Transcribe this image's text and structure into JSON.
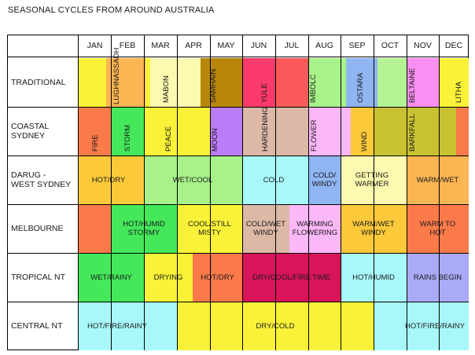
{
  "title": "SEASONAL CYCLES FROM AROUND AUSTRALIA",
  "months": [
    "JAN",
    "FEB",
    "MAR",
    "APR",
    "MAY",
    "JUN",
    "JUL",
    "AUG",
    "SEP",
    "OCT",
    "NOV",
    "DEC"
  ],
  "rows": [
    {
      "label": "TRADITIONAL"
    },
    {
      "label_lines": [
        "COASTAL",
        "SYDNEY"
      ]
    },
    {
      "label_lines": [
        "DARUG -",
        "WEST SYDNEY"
      ]
    },
    {
      "label": "MELBOURNE"
    },
    {
      "label": "TROPICAL NT"
    },
    {
      "label": "CENTRAL NT"
    }
  ],
  "traditional": [
    "LUGHNASSADH",
    "MABON",
    "SAMHAIN",
    "YULE",
    "IMBOLC",
    "OSTARA",
    "BELTAINE",
    "LITHA"
  ],
  "coastal_sydney": [
    "FIRE",
    "STORM",
    "PEACE",
    "MOON",
    "HARDENING",
    "FLOWER",
    "WIND",
    "BARKFALL"
  ],
  "darug": {
    "s1": "HOT/DRY",
    "s2": "WET/COOL",
    "s3": "COLD",
    "s4": [
      "COLD/",
      "WINDY"
    ],
    "s5": [
      "GETTING",
      "WARMER"
    ],
    "s6": "WARM/WET"
  },
  "melbourne": {
    "s2": [
      "HOT/HUMID",
      "STORMY"
    ],
    "s3": [
      "COOL/STILL",
      "MISTY"
    ],
    "s4": [
      "COLD/WET",
      "WINDY"
    ],
    "s5": [
      "WARMING",
      "FLOWERING"
    ],
    "s6": [
      "WARM/WET",
      "WINDY"
    ],
    "s7": [
      "WARM TO",
      "HOT"
    ]
  },
  "tropical_nt": {
    "s1": "WET/RAINY",
    "s2": "DRYING",
    "s3": "HOT/DRY",
    "s4": "DRY/COOL/FIRE TIME",
    "s5": "HOT/HUMID",
    "s6": "RAINS BEGIN"
  },
  "central_nt": {
    "s1": "HOT/FIRE/RAINY",
    "s2": "DRY/COLD",
    "s3": "HOT/FIRE/RAINY"
  },
  "colors": {
    "yellow": "#f9f238",
    "orange": "#fbb553",
    "lightyellow": "#fcf9b0",
    "brown": "#b8860b",
    "red": "#fa5a5a",
    "lightgreen": "#a8f28a",
    "blue": "#8fb5f2",
    "pink": "#fa8ef2",
    "coral": "#fa7a4a",
    "green": "#44e85a",
    "purple": "#bb7cf8",
    "tan": "#dcb8a6",
    "lavender": "#fbb8f8",
    "olive": "#c8c232",
    "cyan": "#a8f8fa",
    "gold": "#fbc93a",
    "crimson": "#d8145a",
    "periwinkle": "#aaaaf8"
  }
}
